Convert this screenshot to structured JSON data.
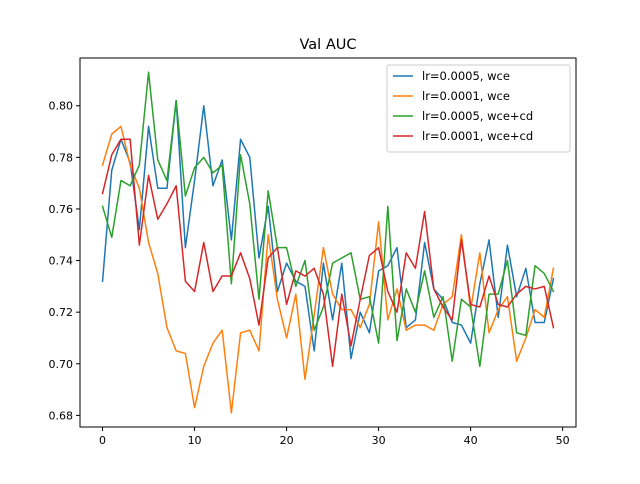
{
  "chart_data": {
    "type": "line",
    "title": "Val AUC",
    "xlabel": "",
    "ylabel": "",
    "xlim": [
      -2.45,
      51.45
    ],
    "ylim": [
      0.6755,
      0.8185
    ],
    "x_ticks": [
      0,
      10,
      20,
      30,
      40,
      50
    ],
    "y_ticks": [
      0.68,
      0.7,
      0.72,
      0.74,
      0.76,
      0.78,
      0.8
    ],
    "y_tick_labels": [
      "0.68",
      "0.70",
      "0.72",
      "0.74",
      "0.76",
      "0.78",
      "0.80"
    ],
    "grid": false,
    "legend_position": "top-right",
    "x": [
      0,
      1,
      2,
      3,
      4,
      5,
      6,
      7,
      8,
      9,
      10,
      11,
      12,
      13,
      14,
      15,
      16,
      17,
      18,
      19,
      20,
      21,
      22,
      23,
      24,
      25,
      26,
      27,
      28,
      29,
      30,
      31,
      32,
      33,
      34,
      35,
      36,
      37,
      38,
      39,
      40,
      41,
      42,
      43,
      44,
      45,
      46,
      47,
      48,
      49
    ],
    "series": [
      {
        "name": "lr=0.0005, wce",
        "color": "#1f77b4",
        "values": [
          0.732,
          0.775,
          0.787,
          0.778,
          0.752,
          0.792,
          0.768,
          0.768,
          0.802,
          0.745,
          0.771,
          0.8,
          0.769,
          0.779,
          0.748,
          0.787,
          0.78,
          0.741,
          0.761,
          0.728,
          0.739,
          0.732,
          0.73,
          0.705,
          0.739,
          0.717,
          0.739,
          0.702,
          0.72,
          0.712,
          0.736,
          0.738,
          0.745,
          0.714,
          0.717,
          0.747,
          0.729,
          0.725,
          0.716,
          0.715,
          0.708,
          0.731,
          0.748,
          0.718,
          0.746,
          0.726,
          0.737,
          0.716,
          0.716,
          0.733
        ]
      },
      {
        "name": "lr=0.0001, wce",
        "color": "#ff7f0e",
        "values": [
          0.777,
          0.789,
          0.792,
          0.777,
          0.768,
          0.747,
          0.735,
          0.714,
          0.705,
          0.704,
          0.683,
          0.699,
          0.708,
          0.713,
          0.681,
          0.712,
          0.713,
          0.705,
          0.75,
          0.725,
          0.71,
          0.727,
          0.694,
          0.719,
          0.745,
          0.727,
          0.721,
          0.721,
          0.714,
          0.723,
          0.755,
          0.717,
          0.729,
          0.713,
          0.715,
          0.715,
          0.713,
          0.723,
          0.726,
          0.75,
          0.721,
          0.743,
          0.712,
          0.721,
          0.726,
          0.701,
          0.71,
          0.721,
          0.718,
          0.737
        ]
      },
      {
        "name": "lr=0.0005, wce+cd",
        "color": "#2ca02c",
        "values": [
          0.761,
          0.749,
          0.771,
          0.769,
          0.777,
          0.813,
          0.779,
          0.771,
          0.802,
          0.765,
          0.776,
          0.78,
          0.774,
          0.777,
          0.731,
          0.781,
          0.762,
          0.725,
          0.767,
          0.745,
          0.745,
          0.73,
          0.74,
          0.713,
          0.722,
          0.739,
          0.741,
          0.743,
          0.725,
          0.726,
          0.708,
          0.761,
          0.709,
          0.729,
          0.72,
          0.736,
          0.718,
          0.726,
          0.701,
          0.725,
          0.722,
          0.699,
          0.727,
          0.727,
          0.74,
          0.712,
          0.711,
          0.738,
          0.735,
          0.728
        ]
      },
      {
        "name": "lr=0.0001, wce+cd",
        "color": "#d62728",
        "values": [
          0.766,
          0.781,
          0.787,
          0.787,
          0.746,
          0.773,
          0.756,
          0.762,
          0.769,
          0.732,
          0.728,
          0.747,
          0.728,
          0.734,
          0.734,
          0.743,
          0.733,
          0.715,
          0.741,
          0.745,
          0.723,
          0.736,
          0.734,
          0.737,
          0.727,
          0.699,
          0.727,
          0.707,
          0.725,
          0.742,
          0.745,
          0.728,
          0.72,
          0.743,
          0.737,
          0.759,
          0.729,
          0.722,
          0.717,
          0.748,
          0.723,
          0.722,
          0.734,
          0.723,
          0.722,
          0.727,
          0.73,
          0.729,
          0.73,
          0.714
        ]
      }
    ]
  }
}
